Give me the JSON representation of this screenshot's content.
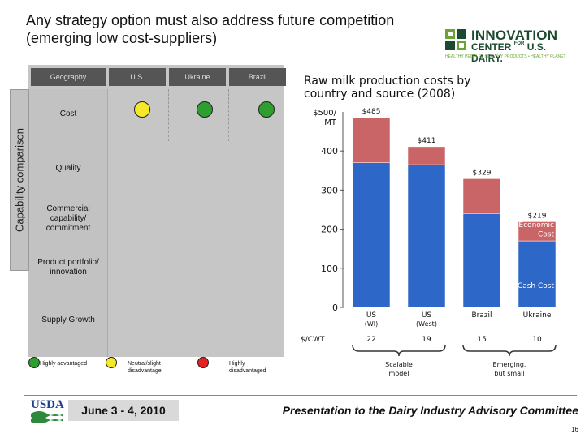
{
  "slide": {
    "title": "Any strategy option must also address future competition (emerging low cost-suppliers)",
    "page_number": "16"
  },
  "logo": {
    "line1": "INNOVATION",
    "line2a": "CENTER",
    "line2b": "FOR",
    "line2c": "U.S. DAIRY.",
    "tagline": "HEALTHY PEOPLE • HEALTHY PRODUCTS • HEALTHY PLANET"
  },
  "comparison": {
    "side_label": "Capability comparison",
    "header": "Geography",
    "columns": [
      "U.S.",
      "Ukraine",
      "Brazil"
    ],
    "rows": [
      {
        "label": "Cost",
        "ratings": [
          "yellow",
          "green",
          "green"
        ]
      },
      {
        "label": "Quality",
        "ratings": []
      },
      {
        "label": "Commercial capability/ commitment",
        "ratings": []
      },
      {
        "label": "Product portfolio/ innovation",
        "ratings": []
      },
      {
        "label": "Supply Growth",
        "ratings": []
      }
    ],
    "colors": {
      "green": "#2e9e2e",
      "yellow": "#f5e829",
      "red": "#e52222",
      "header_bg": "#555555"
    },
    "legend": [
      {
        "color": "green",
        "label": "Highly advantaged"
      },
      {
        "color": "yellow",
        "label": "Neutral/slight disadvantage"
      },
      {
        "color": "red",
        "label": "Highly disadvantaged"
      }
    ]
  },
  "chart_data": {
    "type": "bar",
    "stacked": true,
    "title": "Raw milk production costs by country and source (2008)",
    "ylabel": "$500/ MT",
    "ylim": [
      0,
      500
    ],
    "yticks": [
      "0",
      "100",
      "200",
      "300",
      "400"
    ],
    "categories": [
      "US (WI)",
      "US (West)",
      "Brazil",
      "Ukraine"
    ],
    "series": [
      {
        "name": "Cash Cost",
        "values": [
          370,
          365,
          240,
          170
        ],
        "color": "#2d68c9"
      },
      {
        "name": "Economic Cost",
        "values": [
          115,
          46,
          89,
          49
        ],
        "color": "#c96567"
      }
    ],
    "totals_labels": [
      "$485",
      "$411",
      "$329",
      "$219"
    ],
    "secondary_row": {
      "label": "$/CWT",
      "values": [
        "22",
        "19",
        "15",
        "10"
      ]
    },
    "annotations": [
      "Scalable model",
      "Emerging, but small"
    ]
  },
  "footer": {
    "org": "USDA",
    "date": "June 3 - 4, 2010",
    "presentation": "Presentation to the Dairy Industry Advisory Committee"
  }
}
